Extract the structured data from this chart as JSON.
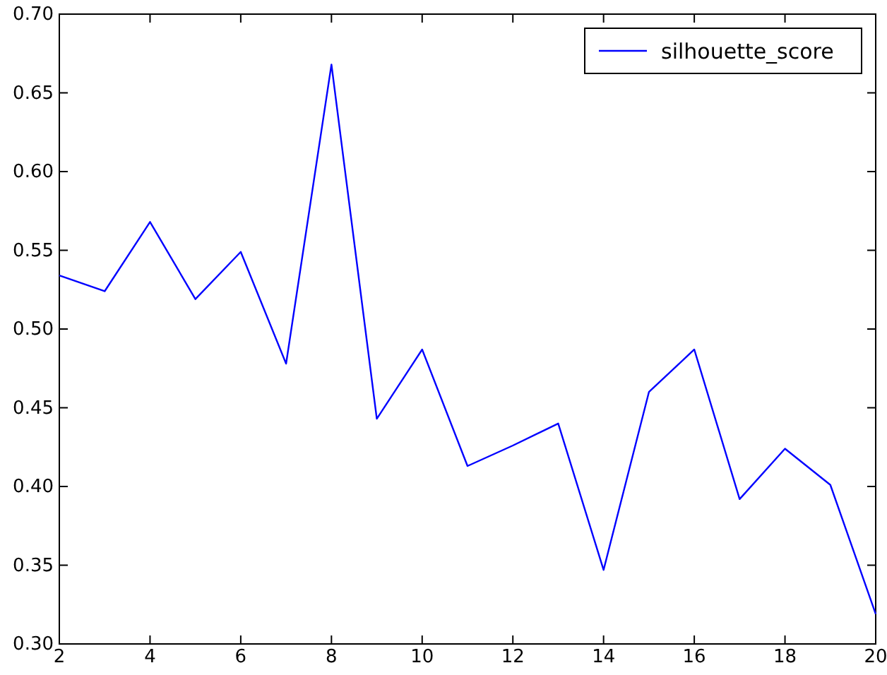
{
  "chart_data": {
    "type": "line",
    "x": [
      2,
      3,
      4,
      5,
      6,
      7,
      8,
      9,
      10,
      11,
      12,
      13,
      14,
      15,
      16,
      17,
      18,
      19,
      20
    ],
    "series": [
      {
        "name": "silhouette_score",
        "color": "#0000ff",
        "values": [
          0.534,
          0.524,
          0.568,
          0.519,
          0.549,
          0.478,
          0.668,
          0.443,
          0.487,
          0.413,
          0.426,
          0.44,
          0.347,
          0.46,
          0.487,
          0.392,
          0.424,
          0.401,
          0.319
        ]
      }
    ],
    "xlim": [
      2,
      20
    ],
    "xticks": [
      2,
      4,
      6,
      8,
      10,
      12,
      14,
      16,
      18,
      20
    ],
    "ylim": [
      0.3,
      0.7
    ],
    "yticks": [
      {
        "value": 0.3,
        "label": "0.30"
      },
      {
        "value": 0.35,
        "label": "0.35"
      },
      {
        "value": 0.4,
        "label": "0.40"
      },
      {
        "value": 0.45,
        "label": "0.45"
      },
      {
        "value": 0.5,
        "label": "0.50"
      },
      {
        "value": 0.55,
        "label": "0.55"
      },
      {
        "value": 0.6,
        "label": "0.60"
      },
      {
        "value": 0.65,
        "label": "0.65"
      },
      {
        "value": 0.7,
        "label": "0.70"
      }
    ],
    "legend": "top right",
    "grid": false,
    "marker": "none",
    "line_style": "solid"
  }
}
